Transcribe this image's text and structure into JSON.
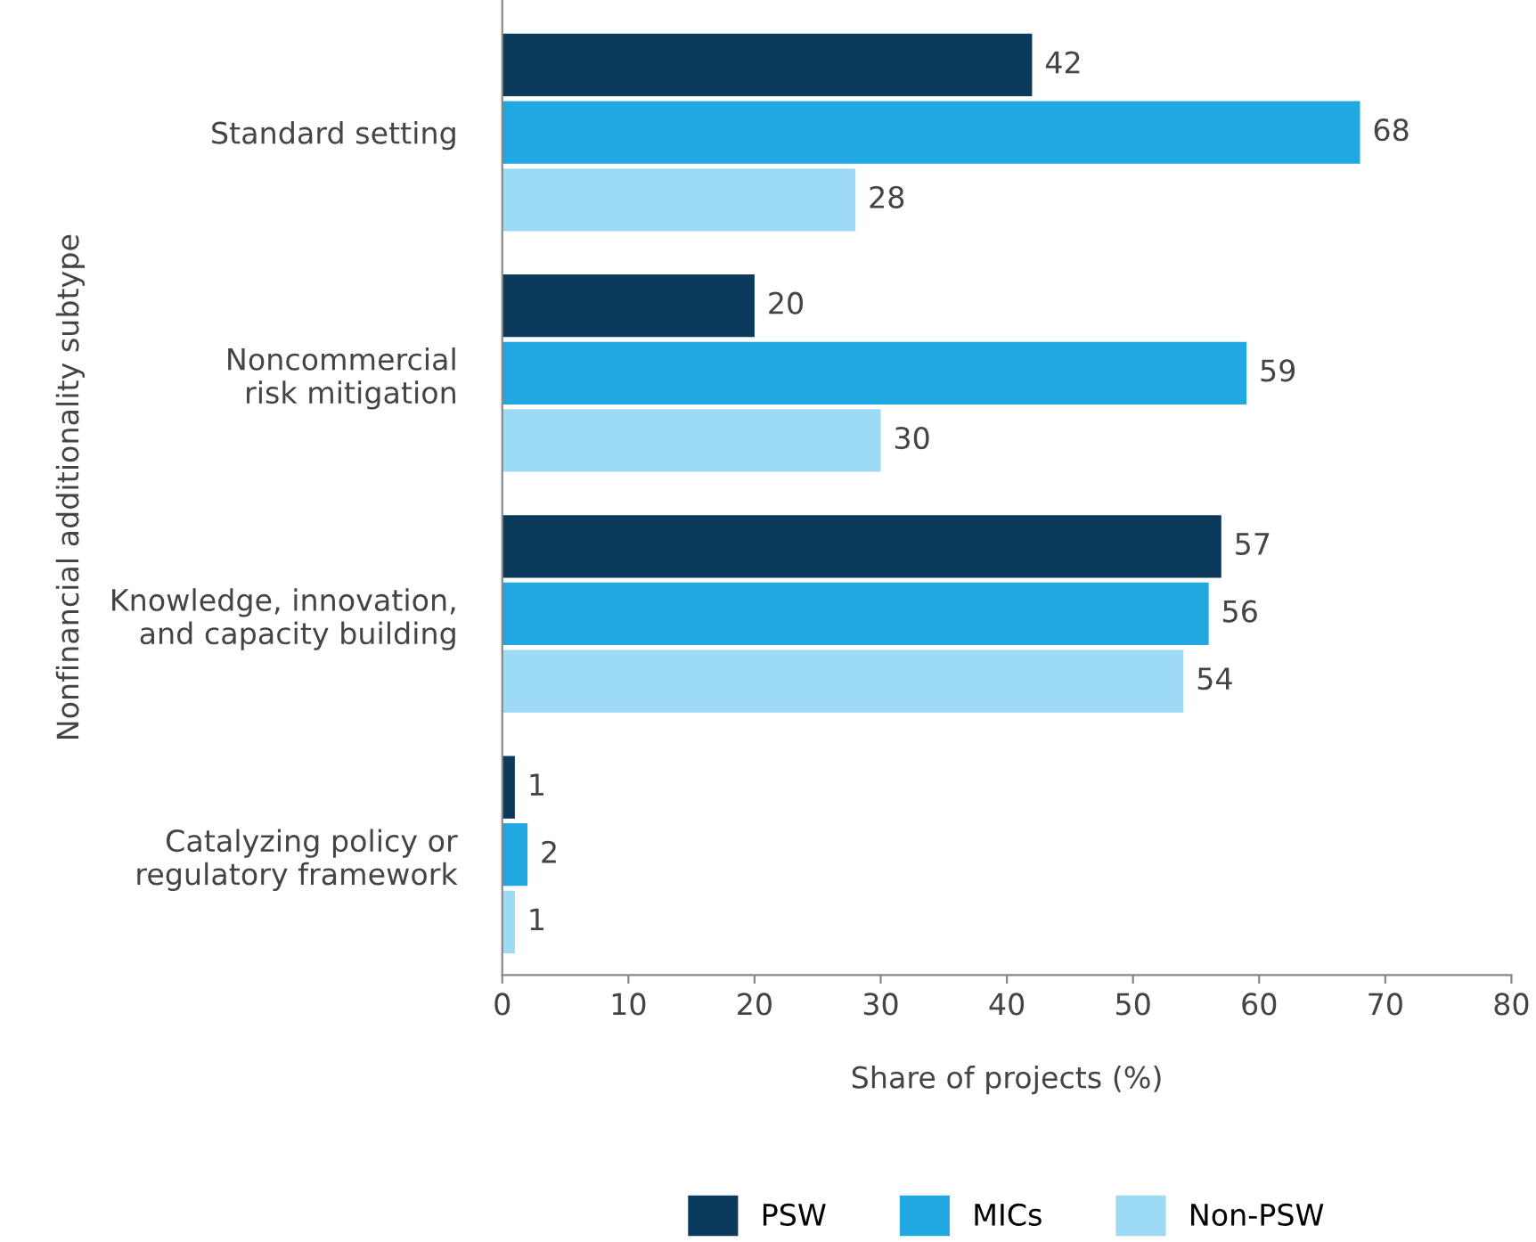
{
  "chart_data": {
    "type": "bar",
    "orientation": "horizontal",
    "categories": [
      "Standard setting",
      "Noncommercial\nrisk mitigation",
      "Knowledge, innovation,\nand capacity building",
      "Catalyzing policy or\nregulatory framework"
    ],
    "series": [
      {
        "name": "PSW",
        "color": "#0b3a5c",
        "values": [
          42,
          20,
          57,
          1
        ]
      },
      {
        "name": "MICs",
        "color": "#22a8e0",
        "values": [
          68,
          59,
          56,
          2
        ]
      },
      {
        "name": "Non-PSW",
        "color": "#9ddaf5",
        "values": [
          28,
          30,
          54,
          1
        ]
      }
    ],
    "xlabel": "Share of projects (%)",
    "ylabel": "Nonfinancial additionality subtype",
    "xlim": [
      0,
      80
    ],
    "xticks": [
      0,
      10,
      20,
      30,
      40,
      50,
      60,
      70,
      80
    ],
    "data_labels": true,
    "grid": false,
    "legend": "bottom"
  }
}
